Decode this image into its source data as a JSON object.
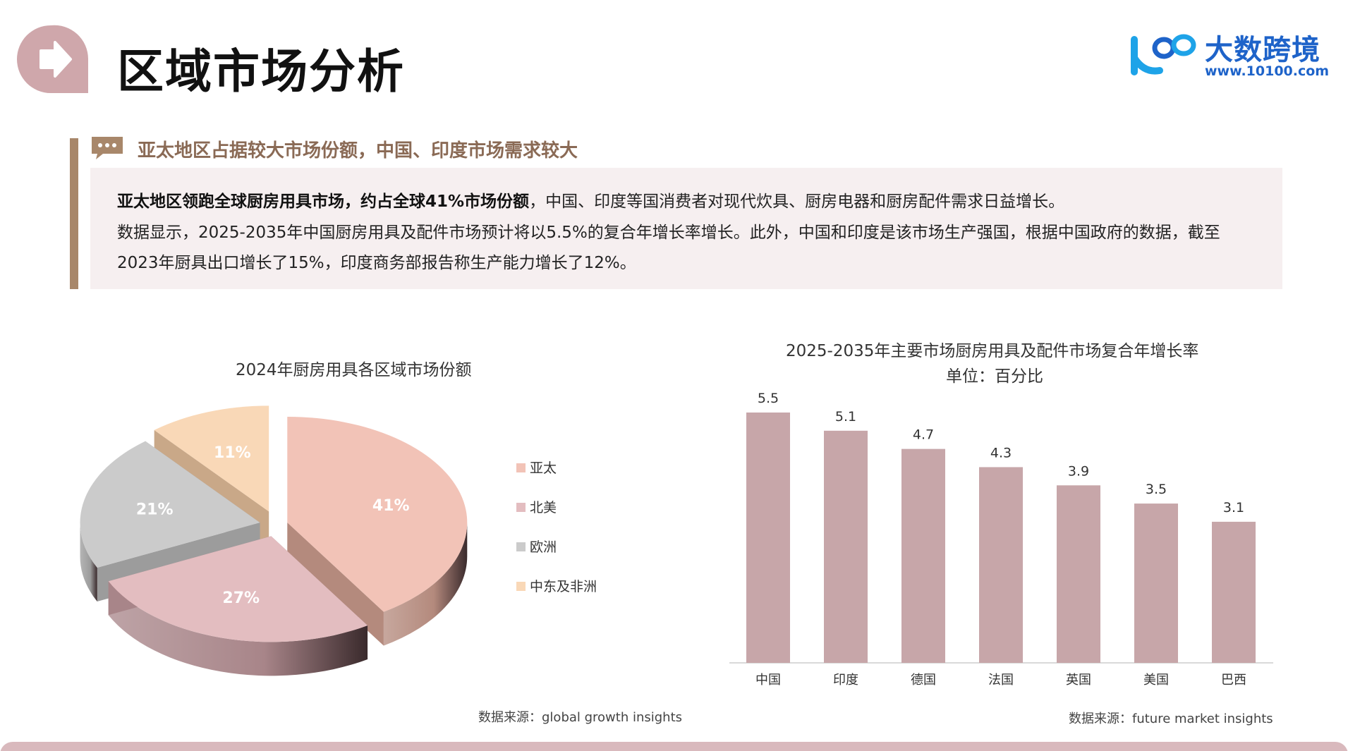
{
  "header": {
    "title": "区域市场分析",
    "logo_text": "大数跨境",
    "logo_url": "www.10100.com"
  },
  "section": {
    "heading": "亚太地区占据较大市场份额，中国、印度市场需求较大",
    "p1_bold": "亚太地区领跑全球厨房用具市场，约占全球41%市场份额",
    "p1_rest": "，中国、印度等国消费者对现代炊具、厨房电器和厨房配件需求日益增长。",
    "p2": "数据显示，2025-2035年中国厨房用具及配件市场预计将以5.5%的复合年增长率增长。此外，中国和印度是该市场生产强国，根据中国政府的数据，截至",
    "p3": "2023年厨具出口增长了15%，印度商务部报告称生产能力增长了12%。"
  },
  "pie": {
    "title": "2024年厨房用具各区域市场份额",
    "source": "数据来源：global growth insights"
  },
  "bar": {
    "title_line1": "2025-2035年主要市场厨房用具及配件市场复合年增长率",
    "title_line2": "单位：百分比",
    "source": "数据来源：future market insights"
  },
  "chart_data": [
    {
      "type": "pie",
      "title": "2024年厨房用具各区域市场份额",
      "legend_position": "right",
      "categories": [
        "亚太",
        "北美",
        "欧洲",
        "中东及非洲"
      ],
      "values": [
        41,
        27,
        21,
        11
      ],
      "labels": [
        "41%",
        "27%",
        "21%",
        "11%"
      ],
      "colors": [
        "#f2c3b7",
        "#e3bdc0",
        "#cbcbcb",
        "#f9d8b7"
      ],
      "side_colors": [
        "#b48a7d",
        "#a88589",
        "#9c9c9c",
        "#c9a888"
      ]
    },
    {
      "type": "bar",
      "title": "2025-2035年主要市场厨房用具及配件市场复合年增长率",
      "subtitle": "单位：百分比",
      "categories": [
        "中国",
        "印度",
        "德国",
        "法国",
        "英国",
        "美国",
        "巴西"
      ],
      "values": [
        5.5,
        5.1,
        4.7,
        4.3,
        3.9,
        3.5,
        3.1
      ],
      "value_labels": [
        "5.5",
        "5.1",
        "4.7",
        "4.3",
        "3.9",
        "3.5",
        "3.1"
      ],
      "bar_color": "#c7a6a9",
      "ylim": [
        0,
        5.5
      ],
      "grid": false
    }
  ],
  "colors": {
    "accent": "#a8876a",
    "heading": "#8a6a55",
    "box_bg": "#f6eff0",
    "logo": "#1e63c9",
    "badge": "#cfa7ab"
  },
  "icons": {
    "badge": "arrow-right-icon",
    "section": "chat-bubble-icon",
    "logo": "logo-10100-icon"
  }
}
